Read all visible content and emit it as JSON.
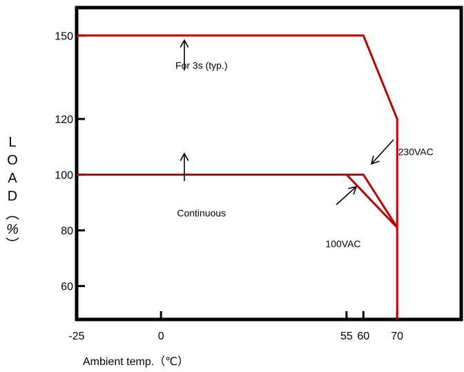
{
  "chart_data": {
    "type": "line",
    "xlabel": "Ambient temp.（℃）",
    "ylabel": "LOAD（%）",
    "x_ticks": [
      -25,
      0,
      55,
      60,
      70
    ],
    "y_ticks": [
      60,
      80,
      100,
      120,
      150
    ],
    "xlim": [
      -25,
      89
    ],
    "ylim": [
      48,
      160
    ],
    "colors": {
      "curve": "#c00000",
      "frame": "#000000"
    },
    "series": [
      {
        "values": [
          [
            -25,
            150
          ],
          [
            60,
            150
          ],
          [
            70,
            120
          ],
          [
            70,
            48
          ]
        ]
      },
      {
        "values": [
          [
            -25,
            100
          ],
          [
            60,
            100
          ],
          [
            70,
            81
          ]
        ]
      },
      {
        "values": [
          [
            55,
            100
          ],
          [
            70,
            81
          ]
        ]
      }
    ],
    "annotations": [
      {
        "text": "For 3s (typ.)",
        "x": 12,
        "y": 138
      },
      {
        "text": "Continuous",
        "x": 12,
        "y": 85
      },
      {
        "text": "230VAC",
        "x": 70.3,
        "y": 107
      },
      {
        "text": "100VAC",
        "x": 54,
        "y": 74
      }
    ]
  }
}
